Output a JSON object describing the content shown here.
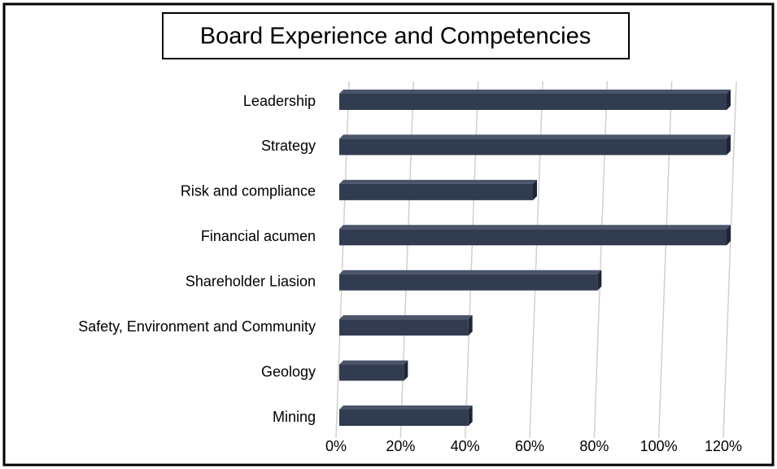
{
  "chart_data": {
    "type": "bar",
    "orientation": "horizontal",
    "title": "Board Experience and Competencies",
    "categories": [
      "Leadership",
      "Strategy",
      "Risk and compliance",
      "Financial acumen",
      "Shareholder Liasion",
      "Safety, Environment and Community",
      "Geology",
      "Mining"
    ],
    "values": [
      120,
      120,
      60,
      120,
      80,
      40,
      20,
      40
    ],
    "color": "#323c50",
    "xlim": [
      0,
      120
    ],
    "xticks": [
      {
        "value": 0,
        "label": "0%"
      },
      {
        "value": 20,
        "label": "20%"
      },
      {
        "value": 40,
        "label": "40%"
      },
      {
        "value": 60,
        "label": "60%"
      },
      {
        "value": 80,
        "label": "80%"
      },
      {
        "value": 100,
        "label": "100%"
      },
      {
        "value": 120,
        "label": "120%"
      }
    ],
    "grid": true
  }
}
